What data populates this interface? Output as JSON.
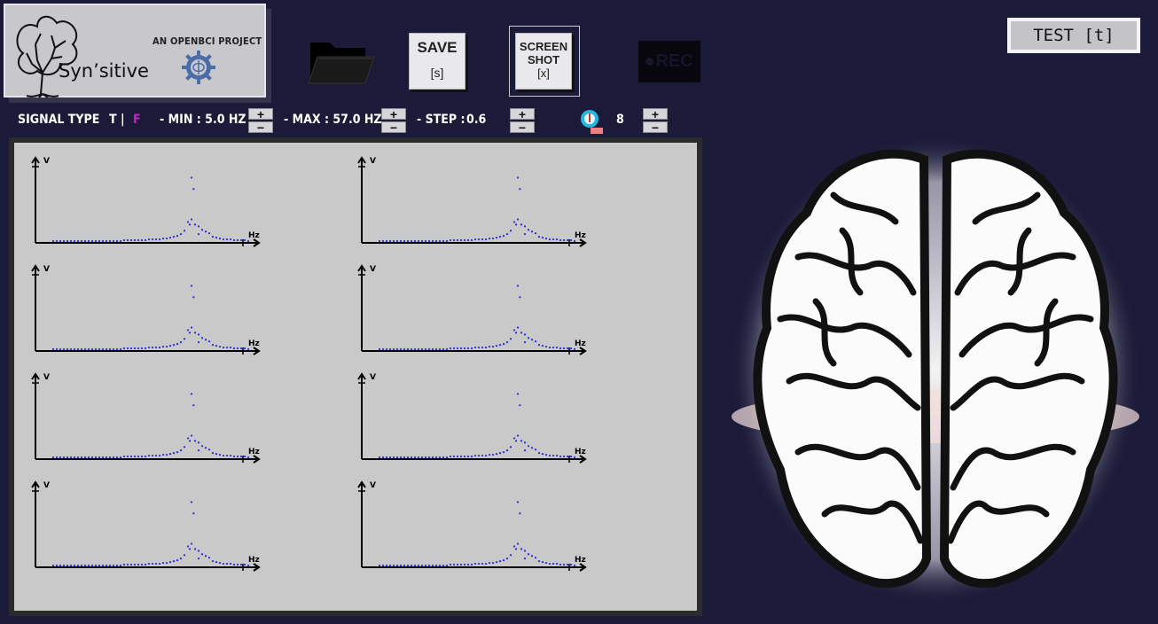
{
  "logo": {
    "app_name": "Syn’sitive",
    "openbci_label": "AN OPENBCI PROJECT"
  },
  "toolbar": {
    "save_label": "SAVE",
    "save_shortcut": "[s]",
    "screenshot_label_line1": "SCREEN",
    "screenshot_label_line2": "SHOT",
    "screenshot_shortcut": "[x]",
    "rec_label": "REC",
    "test_label": "TEST [t]"
  },
  "controls": {
    "signal_type_label": "SIGNAL TYPE",
    "signal_type_t": "T",
    "signal_type_sep": "|",
    "signal_type_f": "F",
    "min_label": "- MIN : 5.0 HZ",
    "max_label": "- MAX : 57.0 HZ",
    "step_label": "- STEP :",
    "step_value": "0.6",
    "count_value": "8",
    "plus": "+",
    "minus": "−"
  },
  "colors": {
    "background": "#1b1a38",
    "plot_panel": "#c9c9c9",
    "points": "#2a2ad8",
    "active_signal_type": "#c028c0"
  },
  "chart_data": {
    "type": "scatter",
    "count": 8,
    "xlabel": "Hz",
    "ylabel": "V",
    "note_points": "same spectrum shape shown in all 8 plots",
    "points": [
      [
        0,
        0
      ],
      [
        1,
        0
      ],
      [
        2,
        0
      ],
      [
        3,
        0
      ],
      [
        4,
        0
      ],
      [
        5,
        0
      ],
      [
        6,
        0
      ],
      [
        7,
        0
      ],
      [
        8,
        0
      ],
      [
        9,
        0
      ],
      [
        10,
        0
      ],
      [
        11,
        0
      ],
      [
        12,
        0
      ],
      [
        13,
        0
      ],
      [
        14,
        0
      ],
      [
        15,
        0
      ],
      [
        16,
        0
      ],
      [
        17,
        0
      ],
      [
        18,
        0
      ],
      [
        19,
        0
      ],
      [
        20,
        0.01
      ],
      [
        21,
        0.01
      ],
      [
        22,
        0.01
      ],
      [
        23,
        0.01
      ],
      [
        24,
        0.01
      ],
      [
        25,
        0.01
      ],
      [
        26,
        0.01
      ],
      [
        27,
        0.02
      ],
      [
        28,
        0.02
      ],
      [
        29,
        0.02
      ],
      [
        30,
        0.02
      ],
      [
        31,
        0.03
      ],
      [
        32,
        0.03
      ],
      [
        33,
        0.04
      ],
      [
        34,
        0.05
      ],
      [
        35,
        0.06
      ],
      [
        36,
        0.08
      ],
      [
        37,
        0.12
      ],
      [
        38,
        0.22
      ],
      [
        39,
        0.25
      ],
      [
        40,
        0.19
      ],
      [
        41,
        0.08
      ],
      [
        42,
        0.13
      ],
      [
        43,
        0.11
      ],
      [
        44,
        0.09
      ],
      [
        45,
        0.05
      ],
      [
        46,
        0.04
      ],
      [
        47,
        0.03
      ],
      [
        48,
        0.02
      ],
      [
        49,
        0.02
      ],
      [
        50,
        0.02
      ],
      [
        51,
        0.01
      ],
      [
        52,
        0.01
      ],
      [
        53,
        0.01
      ],
      [
        54,
        0.01
      ],
      [
        55,
        0.0
      ]
    ],
    "peak_points": [
      [
        39,
        0.73
      ],
      [
        39.6,
        0.6
      ],
      [
        41,
        0.17
      ],
      [
        38.5,
        0.19
      ]
    ]
  }
}
